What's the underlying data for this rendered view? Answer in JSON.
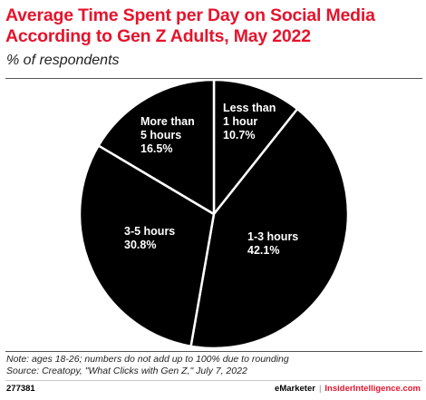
{
  "colors": {
    "title": "#e4142c",
    "slice": "#000000",
    "slice_border": "#ffffff",
    "label": "#ffffff",
    "brand_right": "#e4142c"
  },
  "header": {
    "title_line1": "Average Time Spent per Day on Social Media",
    "title_line2": "According to Gen Z Adults, May 2022",
    "subtitle": "% of respondents"
  },
  "chart_data": {
    "type": "pie",
    "title": "Average Time Spent per Day on Social Media According to Gen Z Adults, May 2022",
    "subtitle": "% of respondents",
    "slices": [
      {
        "label": [
          "Less than",
          "1 hour"
        ],
        "value": 10.7,
        "value_label": "10.7%"
      },
      {
        "label": [
          "1-3 hours"
        ],
        "value": 42.1,
        "value_label": "42.1%"
      },
      {
        "label": [
          "3-5 hours"
        ],
        "value": 30.8,
        "value_label": "30.8%"
      },
      {
        "label": [
          "More than",
          "5 hours"
        ],
        "value": 16.5,
        "value_label": "16.5%"
      }
    ]
  },
  "footer": {
    "note": "Note: ages 18-26; numbers do not add up to 100% due to rounding",
    "source": "Source: Creatopy, \"What Clicks with Gen Z,\" July 7, 2022",
    "chart_id": "277381",
    "brand_left": "eMarketer",
    "separator": "|",
    "brand_right": "InsiderIntelligence.com"
  }
}
